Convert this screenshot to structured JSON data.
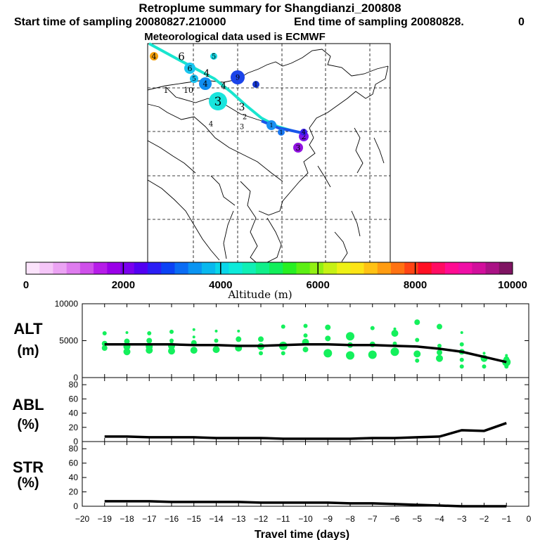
{
  "header": {
    "title": "Retroplume summary for Shangdianzi_200808",
    "start": "Start time of sampling 20080827.210000",
    "end": "End time of sampling 20080828.",
    "end_suffix": "0",
    "met": "Meteorological data used is ECMWF"
  },
  "colorbar": {
    "label": "Altitude  (m)",
    "ticks": [
      "0",
      "2000",
      "4000",
      "6000",
      "8000",
      "10000"
    ],
    "colors": [
      "#fbe3fb",
      "#f5c6f8",
      "#eba3f3",
      "#de7cee",
      "#cf50ea",
      "#b61ce8",
      "#9a00e8",
      "#7a00ee",
      "#5200f2",
      "#2b1ef5",
      "#0b42f5",
      "#0a6cf4",
      "#0a94f2",
      "#08b8ee",
      "#09d6e9",
      "#0deada",
      "#0fefb5",
      "#10ef8a",
      "#12ee5a",
      "#27ef22",
      "#5cef13",
      "#92f013",
      "#c6f114",
      "#eef116",
      "#fce416",
      "#ffc214",
      "#ff9c12",
      "#ff7212",
      "#ff4414",
      "#ff0f24",
      "#ff0c62",
      "#ff0c92",
      "#ef0fa6",
      "#d20f9c",
      "#aa1285",
      "#7f1462"
    ]
  },
  "map": {
    "labels": [
      "4",
      "6",
      "5",
      "6",
      "4",
      "5",
      "4",
      "4",
      "3",
      "1",
      "10",
      "9",
      "5",
      "3",
      "2",
      "1",
      "4",
      "3",
      "1",
      "1",
      "2",
      "3",
      "4"
    ],
    "trajectory_colors": [
      "#19e5cf",
      "#1a55ea"
    ]
  },
  "chart_data": [
    {
      "type": "line",
      "title": "ALT",
      "ylabel": "(m)",
      "ylim": [
        0,
        10000
      ],
      "yticks": [
        "0",
        "5000",
        "10000"
      ],
      "x": [
        -19,
        -18,
        -17,
        -16,
        -15,
        -14,
        -13,
        -12,
        -11,
        -10,
        -9,
        -8,
        -7,
        -6,
        -5,
        -4,
        -3,
        -2,
        -1
      ],
      "mean_altitude": [
        4500,
        4500,
        4500,
        4500,
        4400,
        4400,
        4300,
        4300,
        4400,
        4500,
        4500,
        4400,
        4400,
        4300,
        4200,
        3900,
        3500,
        2800,
        2100
      ],
      "points": [
        {
          "x": -19,
          "y": 6000,
          "r": 3
        },
        {
          "x": -19,
          "y": 4600,
          "r": 4
        },
        {
          "x": -19,
          "y": 4000,
          "r": 4
        },
        {
          "x": -18,
          "y": 6100,
          "r": 2
        },
        {
          "x": -18,
          "y": 4900,
          "r": 4
        },
        {
          "x": -18,
          "y": 4200,
          "r": 5
        },
        {
          "x": -18,
          "y": 3500,
          "r": 5
        },
        {
          "x": -17,
          "y": 6000,
          "r": 3
        },
        {
          "x": -17,
          "y": 5000,
          "r": 4
        },
        {
          "x": -17,
          "y": 4200,
          "r": 5
        },
        {
          "x": -17,
          "y": 3700,
          "r": 5
        },
        {
          "x": -16,
          "y": 6200,
          "r": 3
        },
        {
          "x": -16,
          "y": 5000,
          "r": 3
        },
        {
          "x": -16,
          "y": 4300,
          "r": 5
        },
        {
          "x": -16,
          "y": 3600,
          "r": 5
        },
        {
          "x": -15,
          "y": 6500,
          "r": 2
        },
        {
          "x": -15,
          "y": 5500,
          "r": 2
        },
        {
          "x": -15,
          "y": 4700,
          "r": 4
        },
        {
          "x": -15,
          "y": 3700,
          "r": 5
        },
        {
          "x": -14,
          "y": 6300,
          "r": 2
        },
        {
          "x": -14,
          "y": 5000,
          "r": 3
        },
        {
          "x": -14,
          "y": 3800,
          "r": 5
        },
        {
          "x": -13,
          "y": 6300,
          "r": 2
        },
        {
          "x": -13,
          "y": 5200,
          "r": 4
        },
        {
          "x": -13,
          "y": 4000,
          "r": 5
        },
        {
          "x": -12,
          "y": 5200,
          "r": 4
        },
        {
          "x": -12,
          "y": 4200,
          "r": 5
        },
        {
          "x": -12,
          "y": 3300,
          "r": 3
        },
        {
          "x": -11,
          "y": 6900,
          "r": 3
        },
        {
          "x": -11,
          "y": 4300,
          "r": 6
        },
        {
          "x": -11,
          "y": 3300,
          "r": 3
        },
        {
          "x": -10,
          "y": 7000,
          "r": 3
        },
        {
          "x": -10,
          "y": 5700,
          "r": 3
        },
        {
          "x": -10,
          "y": 4800,
          "r": 5
        },
        {
          "x": -10,
          "y": 3800,
          "r": 4
        },
        {
          "x": -9,
          "y": 6800,
          "r": 4
        },
        {
          "x": -9,
          "y": 5300,
          "r": 4
        },
        {
          "x": -9,
          "y": 3300,
          "r": 6
        },
        {
          "x": -8,
          "y": 5600,
          "r": 6
        },
        {
          "x": -8,
          "y": 4400,
          "r": 4
        },
        {
          "x": -8,
          "y": 3000,
          "r": 6
        },
        {
          "x": -7,
          "y": 6700,
          "r": 3
        },
        {
          "x": -7,
          "y": 4500,
          "r": 4
        },
        {
          "x": -7,
          "y": 3100,
          "r": 6
        },
        {
          "x": -6,
          "y": 6600,
          "r": 2
        },
        {
          "x": -6,
          "y": 6000,
          "r": 5
        },
        {
          "x": -6,
          "y": 4600,
          "r": 3
        },
        {
          "x": -6,
          "y": 3500,
          "r": 6
        },
        {
          "x": -5,
          "y": 7500,
          "r": 4
        },
        {
          "x": -5,
          "y": 5100,
          "r": 3
        },
        {
          "x": -5,
          "y": 3200,
          "r": 5
        },
        {
          "x": -5,
          "y": 2300,
          "r": 3
        },
        {
          "x": -4,
          "y": 6900,
          "r": 4
        },
        {
          "x": -4,
          "y": 4300,
          "r": 3
        },
        {
          "x": -4,
          "y": 3400,
          "r": 4
        },
        {
          "x": -4,
          "y": 2600,
          "r": 5
        },
        {
          "x": -3,
          "y": 6100,
          "r": 2
        },
        {
          "x": -3,
          "y": 4500,
          "r": 3
        },
        {
          "x": -3,
          "y": 3500,
          "r": 4
        },
        {
          "x": -3,
          "y": 2400,
          "r": 3
        },
        {
          "x": -3,
          "y": 1500,
          "r": 3
        },
        {
          "x": -2,
          "y": 3300,
          "r": 2
        },
        {
          "x": -2,
          "y": 2600,
          "r": 5
        },
        {
          "x": -2,
          "y": 1500,
          "r": 3
        },
        {
          "x": -1,
          "y": 3000,
          "r": 2
        },
        {
          "x": -1,
          "y": 2500,
          "r": 4
        },
        {
          "x": -1,
          "y": 2100,
          "r": 6
        },
        {
          "x": -1,
          "y": 1500,
          "r": 3
        }
      ]
    },
    {
      "type": "line",
      "title": "ABL",
      "ylabel": "(%)",
      "ylim": [
        0,
        90
      ],
      "yticks": [
        "0",
        "20",
        "40",
        "60",
        "80"
      ],
      "x": [
        -19,
        -18,
        -17,
        -16,
        -15,
        -14,
        -13,
        -12,
        -11,
        -10,
        -9,
        -8,
        -7,
        -6,
        -5,
        -4,
        -3,
        -2,
        -1
      ],
      "values": [
        7,
        7,
        6,
        6,
        6,
        5,
        5,
        5,
        4,
        4,
        4,
        4,
        5,
        5,
        6,
        7,
        16,
        15,
        26
      ]
    },
    {
      "type": "line",
      "title": "STR",
      "ylabel": "(%)",
      "ylim": [
        0,
        90
      ],
      "yticks": [
        "0",
        "20",
        "40",
        "60",
        "80"
      ],
      "xlabel": "Travel time (days)",
      "xlim": [
        -20,
        0
      ],
      "xticks": [
        "−20",
        "−19",
        "−18",
        "−17",
        "−16",
        "−15",
        "−14",
        "−13",
        "−12",
        "−11",
        "−10",
        "−9",
        "−8",
        "−7",
        "−6",
        "−5",
        "−4",
        "−3",
        "−2",
        "−1",
        "0"
      ],
      "x": [
        -19,
        -18,
        -17,
        -16,
        -15,
        -14,
        -13,
        -12,
        -11,
        -10,
        -9,
        -8,
        -7,
        -6,
        -5,
        -4,
        -3,
        -2,
        -1
      ],
      "values": [
        7,
        7,
        7,
        6,
        6,
        6,
        6,
        5,
        5,
        5,
        5,
        4,
        4,
        3,
        2,
        1,
        0,
        0,
        0
      ]
    }
  ]
}
